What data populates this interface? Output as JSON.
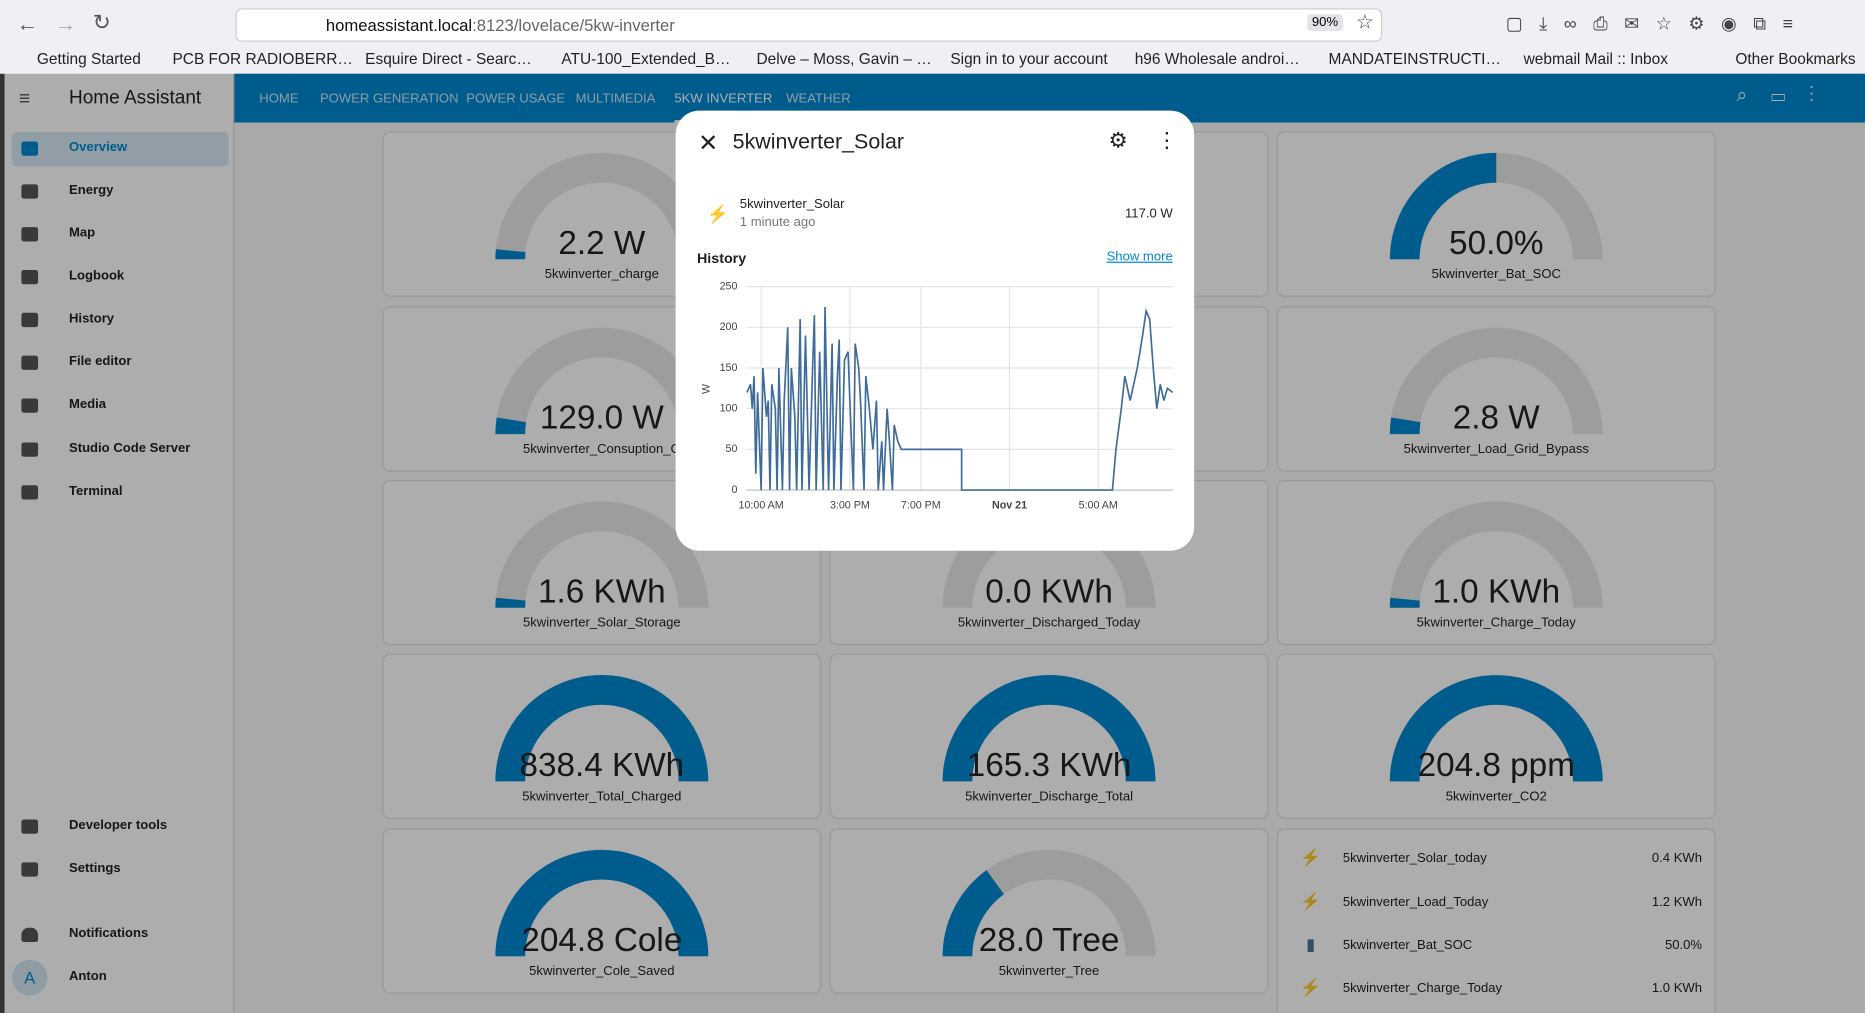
{
  "browser": {
    "url_host": "homeassistant.local",
    "url_path": ":8123/lovelace/5kw-inverter",
    "zoom": "90%",
    "bookmarks": [
      "Getting Started",
      "PCB FOR RADIOBERR…",
      "Esquire Direct - Searc…",
      "ATU-100_Extended_B…",
      "Delve – Moss, Gavin – …",
      "Sign in to your account",
      "h96 Wholesale androi…",
      "MANDATEINSTRUCTI…",
      "webmail Mail :: Inbox",
      "Other Bookmarks"
    ]
  },
  "sidebar": {
    "title": "Home Assistant",
    "items": [
      "Overview",
      "Energy",
      "Map",
      "Logbook",
      "History",
      "File editor",
      "Media",
      "Studio Code Server",
      "Terminal"
    ],
    "bottom_items": [
      "Developer tools",
      "Settings",
      "Notifications",
      "Anton"
    ],
    "avatar": "A"
  },
  "tabs": [
    "HOME",
    "POWER GENERATION",
    "POWER USAGE",
    "MULTIMEDIA",
    "5KW INVERTER",
    "WEATHER"
  ],
  "gauges": [
    {
      "value": "2.2 W",
      "name": "5kwinverter_charge"
    },
    {
      "value": "50.0%",
      "name": "5kwinverter_Bat_SOC"
    },
    {
      "value": "129.0 W",
      "name": "5kwinverter_Consuption_G"
    },
    {
      "value": "2.8 W",
      "name": "5kwinverter_Load_Grid_Bypass"
    },
    {
      "value": "1.6 KWh",
      "name": "5kwinverter_Solar_Storage"
    },
    {
      "value": "0.0 KWh",
      "name": "5kwinverter_Discharged_Today"
    },
    {
      "value": "1.0 KWh",
      "name": "5kwinverter_Charge_Today"
    },
    {
      "value": "838.4 KWh",
      "name": "5kwinverter_Total_Charged"
    },
    {
      "value": "165.3 KWh",
      "name": "5kwinverter_Discharge_Total"
    },
    {
      "value": "204.8 ppm",
      "name": "5kwinverter_CO2"
    },
    {
      "value": "204.8 Cole",
      "name": "5kwinverter_Cole_Saved"
    },
    {
      "value": "28.0 Tree",
      "name": "5kwinverter_Tree"
    }
  ],
  "entities": [
    {
      "name": "5kwinverter_Solar_today",
      "state": "0.4 KWh"
    },
    {
      "name": "5kwinverter_Load_Today",
      "state": "1.2 KWh"
    },
    {
      "name": "5kwinverter_Bat_SOC",
      "state": "50.0%"
    },
    {
      "name": "5kwinverter_Charge_Today",
      "state": "1.0 KWh"
    }
  ],
  "dialog": {
    "title": "5kwinverter_Solar",
    "entity": "5kwinverter_Solar",
    "last_changed": "1 minute ago",
    "state": "117.0 W",
    "history_label": "History",
    "show_more": "Show more"
  },
  "chart_data": {
    "type": "line",
    "ylabel": "W",
    "color": "#3f6c9a",
    "x": [
      9.2,
      9.4,
      9.5,
      9.6,
      9.7,
      9.8,
      10.0,
      10.1,
      10.3,
      10.4,
      10.5,
      10.6,
      10.8,
      10.9,
      11.0,
      11.2,
      11.3,
      11.5,
      11.6,
      11.7,
      11.9,
      12.0,
      12.2,
      12.3,
      12.5,
      12.6,
      12.7,
      12.9,
      13.0,
      13.1,
      13.3,
      13.5,
      13.6,
      13.8,
      14.0,
      14.1,
      14.3,
      14.4,
      14.5,
      14.7,
      14.9,
      15.0,
      15.2,
      15.3,
      15.5,
      15.6,
      15.8,
      15.9,
      16.1,
      16.3,
      16.5,
      16.6,
      16.8,
      16.9,
      17.1,
      17.2,
      17.4,
      17.5,
      17.7,
      17.9,
      21.3,
      21.3,
      29.8,
      30.0,
      30.3,
      30.5,
      30.8,
      31.2,
      31.5,
      31.7,
      31.9,
      32.1,
      32.3,
      32.5,
      32.7,
      32.9,
      33.2
    ],
    "values": [
      120,
      130,
      100,
      140,
      20,
      120,
      0,
      150,
      90,
      110,
      0,
      130,
      100,
      0,
      150,
      0,
      110,
      200,
      0,
      150,
      90,
      0,
      210,
      0,
      190,
      100,
      0,
      150,
      215,
      0,
      170,
      0,
      225,
      0,
      180,
      0,
      140,
      185,
      0,
      160,
      170,
      110,
      0,
      180,
      150,
      110,
      0,
      140,
      100,
      50,
      110,
      0,
      60,
      0,
      100,
      70,
      0,
      80,
      60,
      50,
      50,
      0,
      0,
      50,
      100,
      140,
      110,
      150,
      190,
      220,
      210,
      150,
      100,
      130,
      110,
      125,
      120
    ],
    "xlim": [
      9.2,
      33.2
    ],
    "ylim": [
      0,
      250
    ],
    "yticks": [
      0,
      50,
      100,
      150,
      200,
      250
    ],
    "xticks": [
      {
        "value": 10,
        "label": "10:00 AM"
      },
      {
        "value": 15,
        "label": "3:00 PM"
      },
      {
        "value": 19,
        "label": "7:00 PM"
      },
      {
        "value": 24,
        "label": "Nov 21"
      },
      {
        "value": 29,
        "label": "5:00 AM"
      }
    ],
    "grid": true
  }
}
